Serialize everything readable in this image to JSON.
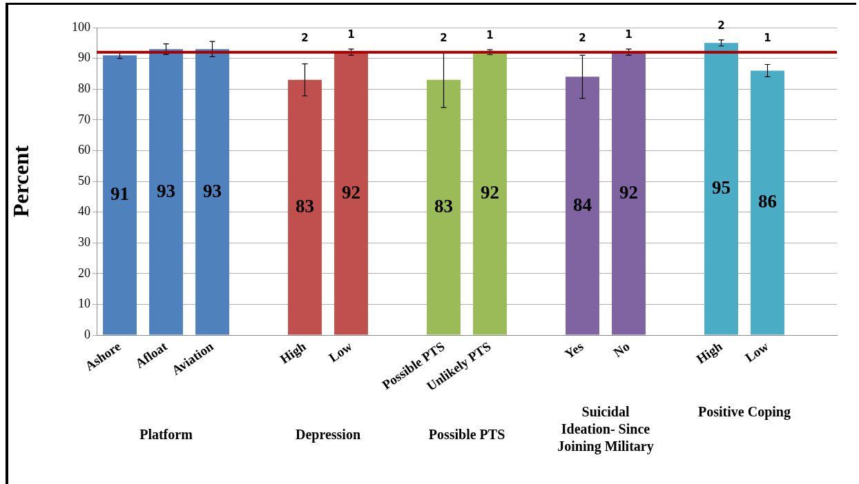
{
  "chart_data": {
    "type": "bar",
    "ylabel": "Percent",
    "categories": [
      "Ashore",
      "Afloat",
      "Aviation",
      null,
      "High",
      "Low",
      null,
      "Possible PTS",
      "Unlikely PTS",
      null,
      "Yes",
      "No",
      null,
      "High",
      "Low",
      null
    ],
    "values": [
      91,
      93,
      93,
      null,
      83,
      92,
      null,
      83,
      92,
      null,
      84,
      92,
      null,
      95,
      86,
      null
    ],
    "colors": [
      "#4f81bd",
      "#4f81bd",
      "#4f81bd",
      null,
      "#c0504d",
      "#c0504d",
      null,
      "#9bbb59",
      "#9bbb59",
      null,
      "#8064a2",
      "#8064a2",
      null,
      "#4bacc6",
      "#4bacc6",
      null
    ],
    "errors": [
      1,
      1.7,
      2.5,
      null,
      5.2,
      1,
      null,
      9,
      0.8,
      null,
      7,
      1,
      null,
      1,
      2,
      null
    ],
    "ylim": [
      0,
      100
    ],
    "yticks": [
      0,
      10,
      20,
      30,
      40,
      50,
      60,
      70,
      80,
      90,
      100
    ],
    "grid": "y",
    "legend": false,
    "data_labels": true,
    "ref_lines": [
      {
        "axis": "y",
        "value": 92,
        "color": "#a50000"
      }
    ],
    "annotations": [
      "2",
      "1",
      "2",
      "1",
      "2",
      "1",
      "2",
      "1",
      "Platform",
      "Depression",
      "Possible PTS",
      "Suicidal Ideation- Since Joining Military",
      "Positive Coping"
    ]
  }
}
